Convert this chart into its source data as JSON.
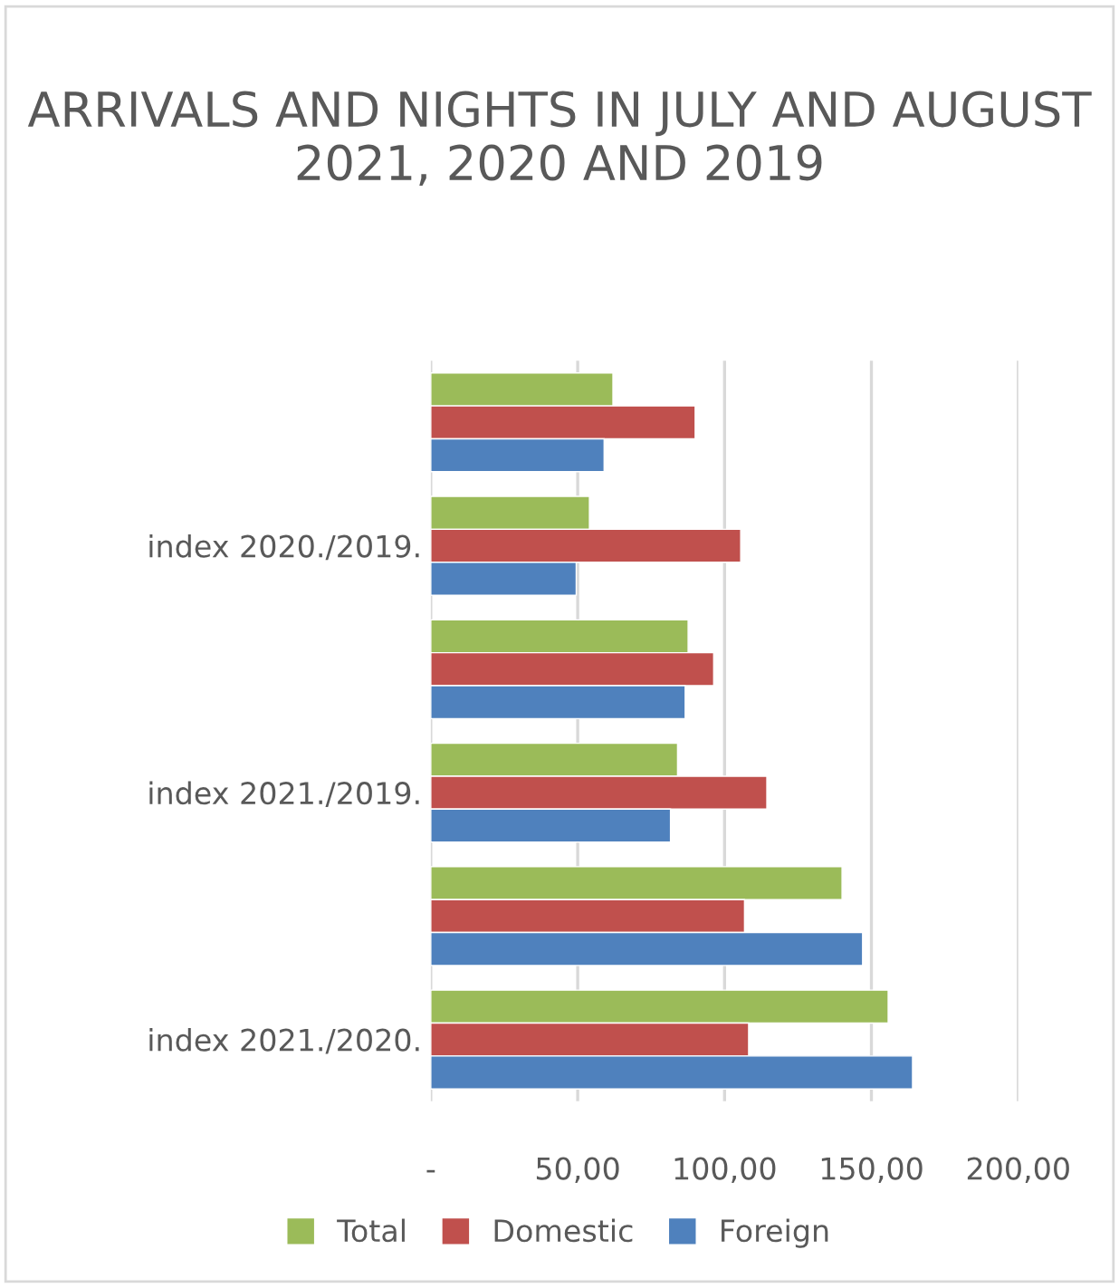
{
  "chart_data": {
    "type": "bar",
    "orientation": "horizontal",
    "title": "ARRIVALS AND NIGHTS IN JULY AND AUGUST 2021, 2020 AND 2019",
    "categories": [
      null,
      "index 2020./2019.",
      null,
      "index 2021./2019.",
      null,
      "index 2021./2020."
    ],
    "series": [
      {
        "name": "Total",
        "color": "#9bbb59",
        "values": [
          62,
          54,
          87.6,
          84,
          140,
          155.7
        ]
      },
      {
        "name": "Domestic",
        "color": "#c0504d",
        "values": [
          90,
          105.5,
          96.3,
          114.4,
          106.8,
          108.2
        ]
      },
      {
        "name": "Foreign",
        "color": "#4f81bd",
        "values": [
          59,
          49.5,
          86.6,
          81.6,
          147,
          164
        ]
      }
    ],
    "xlim": [
      0,
      200
    ],
    "xticks": [
      {
        "value": 0,
        "label": "-"
      },
      {
        "value": 50,
        "label": "50,00"
      },
      {
        "value": 100,
        "label": "100,00"
      },
      {
        "value": 150,
        "label": "150,00"
      },
      {
        "value": 200,
        "label": "200,00"
      }
    ],
    "grid": "x",
    "legend": "bottom"
  }
}
